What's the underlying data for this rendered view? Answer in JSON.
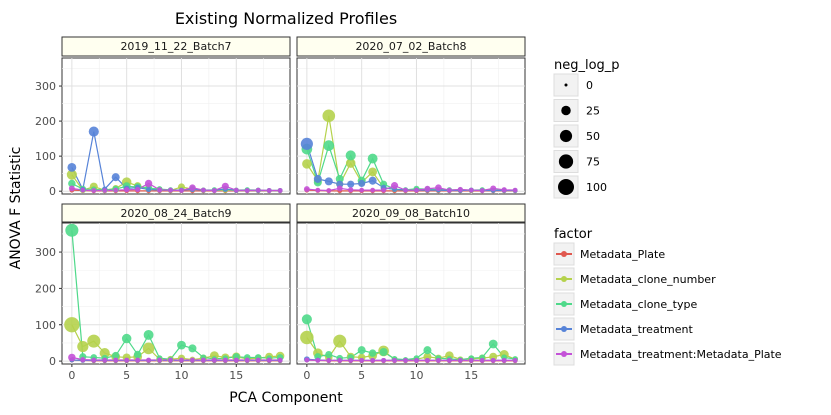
{
  "chart_data": {
    "type": "line",
    "title": "Existing Normalized Profiles",
    "xlabel": "PCA Component",
    "ylabel": "ANOVA F Statistic",
    "xlim": [
      -0.9,
      19.9
    ],
    "ylim": [
      -8,
      380
    ],
    "x_ticks": [
      0,
      5,
      10,
      15
    ],
    "y_ticks": [
      0,
      100,
      200,
      300
    ],
    "grid": true,
    "size_legend": {
      "title": "neg_log_p",
      "breaks": [
        "0",
        "25",
        "50",
        "75",
        "100"
      ],
      "values": [
        0,
        25,
        50,
        75,
        100
      ]
    },
    "color_legend": {
      "title": "factor",
      "entries": [
        {
          "name": "Metadata_Plate",
          "color": "#e0584f"
        },
        {
          "name": "Metadata_clone_number",
          "color": "#b5d24c"
        },
        {
          "name": "Metadata_clone_type",
          "color": "#4fd98a"
        },
        {
          "name": "Metadata_treatment",
          "color": "#5683d8"
        },
        {
          "name": "Metadata_treatment:Metadata_Plate",
          "color": "#c452d8"
        }
      ]
    },
    "panels": [
      {
        "name": "2019_11_22_Batch7",
        "series": [
          {
            "name": "Metadata_Plate",
            "values": [
              3,
              2,
              1,
              1,
              1,
              1,
              1,
              1,
              1,
              1,
              1,
              1,
              1,
              1,
              1,
              1,
              1,
              1,
              1,
              1
            ],
            "sizes": [
              2,
              2,
              2,
              2,
              2,
              2,
              2,
              2,
              2,
              2,
              2,
              2,
              2,
              2,
              2,
              2,
              2,
              2,
              2,
              2
            ]
          },
          {
            "name": "Metadata_clone_number",
            "values": [
              47,
              3,
              13,
              3,
              8,
              26,
              15,
              8,
              5,
              2,
              12,
              6,
              3,
              2,
              3,
              2,
              2,
              2,
              2,
              2
            ],
            "sizes": [
              30,
              5,
              15,
              5,
              8,
              25,
              12,
              8,
              5,
              2,
              10,
              5,
              3,
              2,
              3,
              2,
              2,
              2,
              2,
              2
            ]
          },
          {
            "name": "Metadata_clone_type",
            "values": [
              22,
              6,
              5,
              4,
              6,
              14,
              12,
              9,
              6,
              4,
              3,
              7,
              3,
              4,
              6,
              3,
              4,
              3,
              2,
              2
            ],
            "sizes": [
              12,
              8,
              5,
              5,
              8,
              15,
              12,
              10,
              5,
              3,
              3,
              6,
              3,
              3,
              5,
              3,
              3,
              3,
              2,
              2
            ]
          },
          {
            "name": "Metadata_treatment",
            "values": [
              68,
              5,
              170,
              6,
              40,
              8,
              10,
              5,
              3,
              3,
              3,
              5,
              3,
              2,
              6,
              2,
              2,
              2,
              2,
              2
            ],
            "sizes": [
              20,
              3,
              30,
              3,
              15,
              5,
              5,
              3,
              2,
              2,
              2,
              3,
              2,
              2,
              3,
              2,
              2,
              2,
              2,
              2
            ]
          },
          {
            "name": "Metadata_treatment:Metadata_Plate",
            "values": [
              8,
              3,
              2,
              2,
              3,
              4,
              5,
              22,
              4,
              3,
              2,
              10,
              3,
              2,
              14,
              3,
              2,
              3,
              2,
              2
            ],
            "sizes": [
              5,
              2,
              2,
              2,
              2,
              3,
              3,
              12,
              3,
              2,
              2,
              8,
              2,
              2,
              10,
              2,
              2,
              2,
              2,
              2
            ]
          }
        ]
      },
      {
        "name": "2020_07_02_Batch8",
        "series": [
          {
            "name": "Metadata_Plate",
            "values": [
              3,
              2,
              1,
              1,
              1,
              1,
              1,
              1,
              1,
              1,
              1,
              1,
              1,
              1,
              1,
              1,
              1,
              1,
              1,
              1
            ],
            "sizes": [
              2,
              2,
              2,
              2,
              2,
              2,
              2,
              2,
              2,
              2,
              2,
              2,
              2,
              2,
              2,
              2,
              2,
              2,
              2,
              2
            ]
          },
          {
            "name": "Metadata_clone_number",
            "values": [
              78,
              30,
              215,
              20,
              80,
              25,
              55,
              10,
              5,
              3,
              5,
              4,
              3,
              3,
              3,
              2,
              3,
              3,
              2,
              2
            ],
            "sizes": [
              25,
              15,
              55,
              10,
              25,
              10,
              20,
              5,
              3,
              2,
              3,
              3,
              2,
              2,
              2,
              2,
              2,
              2,
              2,
              2
            ]
          },
          {
            "name": "Metadata_clone_type",
            "values": [
              120,
              25,
              130,
              35,
              102,
              30,
              93,
              20,
              6,
              4,
              7,
              6,
              5,
              4,
              4,
              3,
              4,
              3,
              3,
              2
            ],
            "sizes": [
              35,
              15,
              35,
              15,
              30,
              15,
              28,
              10,
              3,
              3,
              5,
              4,
              3,
              3,
              3,
              3,
              3,
              2,
              2,
              2
            ]
          },
          {
            "name": "Metadata_treatment",
            "values": [
              135,
              35,
              28,
              20,
              20,
              22,
              30,
              10,
              5,
              3,
              3,
              3,
              3,
              2,
              2,
              3,
              2,
              2,
              2,
              2
            ],
            "sizes": [
              50,
              15,
              15,
              10,
              10,
              10,
              15,
              5,
              2,
              2,
              2,
              2,
              2,
              2,
              2,
              2,
              2,
              2,
              2,
              2
            ]
          },
          {
            "name": "Metadata_treatment:Metadata_Plate",
            "values": [
              6,
              3,
              2,
              8,
              4,
              3,
              3,
              3,
              16,
              3,
              3,
              7,
              10,
              3,
              5,
              3,
              2,
              8,
              4,
              3
            ],
            "sizes": [
              5,
              2,
              2,
              5,
              3,
              2,
              2,
              2,
              10,
              2,
              2,
              5,
              8,
              2,
              3,
              2,
              2,
              5,
              3,
              2
            ]
          }
        ]
      },
      {
        "name": "2020_08_24_Batch9",
        "series": [
          {
            "name": "Metadata_Plate",
            "values": [
              3,
              2,
              1,
              1,
              1,
              1,
              1,
              1,
              1,
              1,
              1,
              1,
              1,
              1,
              1,
              1,
              1,
              1,
              1,
              1
            ],
            "sizes": [
              2,
              2,
              2,
              2,
              2,
              2,
              2,
              2,
              2,
              2,
              2,
              2,
              2,
              2,
              2,
              2,
              2,
              2,
              2,
              2
            ]
          },
          {
            "name": "Metadata_clone_number",
            "values": [
              100,
              40,
              55,
              22,
              12,
              10,
              12,
              35,
              5,
              5,
              8,
              4,
              8,
              15,
              10,
              12,
              6,
              8,
              12,
              14
            ],
            "sizes": [
              90,
              40,
              60,
              30,
              20,
              15,
              20,
              45,
              8,
              8,
              10,
              5,
              10,
              20,
              15,
              18,
              8,
              10,
              15,
              18
            ]
          },
          {
            "name": "Metadata_clone_type",
            "values": [
              360,
              12,
              10,
              8,
              15,
              62,
              18,
              72,
              8,
              5,
              44,
              35,
              10,
              6,
              8,
              12,
              10,
              10,
              8,
              10
            ],
            "sizes": [
              60,
              10,
              8,
              8,
              12,
              25,
              12,
              28,
              5,
              3,
              20,
              15,
              5,
              4,
              5,
              10,
              8,
              8,
              5,
              8
            ]
          },
          {
            "name": "Metadata_treatment",
            "values": [
              3,
              2,
              2,
              2,
              2,
              2,
              2,
              2,
              2,
              2,
              2,
              2,
              2,
              2,
              2,
              2,
              2,
              2,
              2,
              2
            ],
            "sizes": [
              2,
              2,
              2,
              2,
              2,
              2,
              2,
              2,
              2,
              2,
              2,
              2,
              2,
              2,
              2,
              2,
              2,
              2,
              2,
              2
            ]
          },
          {
            "name": "Metadata_treatment:Metadata_Plate",
            "values": [
              10,
              4,
              3,
              3,
              3,
              3,
              3,
              3,
              3,
              3,
              3,
              3,
              3,
              3,
              3,
              3,
              3,
              3,
              3,
              3
            ],
            "sizes": [
              12,
              3,
              2,
              2,
              2,
              2,
              2,
              2,
              2,
              2,
              2,
              2,
              2,
              2,
              2,
              2,
              2,
              2,
              2,
              2
            ]
          }
        ]
      },
      {
        "name": "2020_09_08_Batch10",
        "series": [
          {
            "name": "Metadata_Plate",
            "values": [
              3,
              2,
              1,
              1,
              1,
              1,
              1,
              1,
              1,
              1,
              1,
              1,
              1,
              1,
              1,
              1,
              1,
              1,
              1,
              1
            ],
            "sizes": [
              2,
              2,
              2,
              2,
              2,
              2,
              2,
              2,
              2,
              2,
              2,
              2,
              2,
              2,
              2,
              2,
              2,
              2,
              2,
              2
            ]
          },
          {
            "name": "Metadata_clone_number",
            "values": [
              65,
              22,
              10,
              55,
              12,
              10,
              15,
              28,
              5,
              3,
              5,
              12,
              8,
              15,
              5,
              6,
              8,
              12,
              18,
              5
            ],
            "sizes": [
              65,
              25,
              12,
              60,
              15,
              12,
              20,
              35,
              5,
              3,
              5,
              15,
              10,
              18,
              5,
              8,
              10,
              15,
              22,
              5
            ]
          },
          {
            "name": "Metadata_clone_type",
            "values": [
              115,
              12,
              18,
              8,
              10,
              30,
              22,
              25,
              6,
              4,
              8,
              30,
              8,
              6,
              4,
              8,
              10,
              47,
              10,
              6
            ],
            "sizes": [
              30,
              10,
              10,
              8,
              8,
              15,
              12,
              15,
              5,
              3,
              5,
              15,
              5,
              4,
              3,
              5,
              5,
              20,
              5,
              4
            ]
          },
          {
            "name": "Metadata_treatment",
            "values": [
              5,
              3,
              2,
              2,
              2,
              2,
              2,
              2,
              2,
              2,
              2,
              2,
              2,
              2,
              2,
              2,
              2,
              2,
              2,
              2
            ],
            "sizes": [
              5,
              2,
              2,
              2,
              2,
              2,
              2,
              2,
              2,
              2,
              2,
              2,
              2,
              2,
              2,
              2,
              2,
              2,
              2,
              2
            ]
          },
          {
            "name": "Metadata_treatment:Metadata_Plate",
            "values": [
              3,
              2,
              2,
              2,
              2,
              2,
              2,
              2,
              2,
              2,
              2,
              2,
              2,
              2,
              2,
              2,
              2,
              2,
              2,
              2
            ],
            "sizes": [
              2,
              2,
              2,
              2,
              2,
              2,
              2,
              2,
              2,
              2,
              2,
              2,
              2,
              2,
              2,
              2,
              2,
              2,
              2,
              2
            ]
          }
        ]
      }
    ]
  }
}
